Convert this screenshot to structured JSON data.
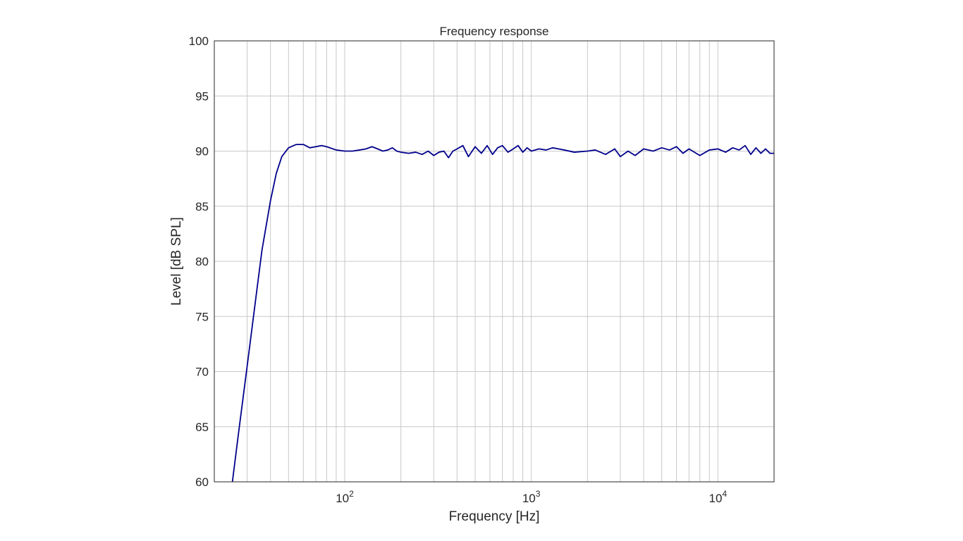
{
  "chart_data": {
    "type": "line",
    "title": "Frequency response",
    "xlabel": "Frequency [Hz]",
    "ylabel": "Level [dB SPL]",
    "x_scale": "log",
    "xlim": [
      20,
      20000
    ],
    "ylim": [
      60,
      100
    ],
    "x_ticks": [
      {
        "base": "10",
        "exp": "2"
      },
      {
        "base": "10",
        "exp": "3"
      },
      {
        "base": "10",
        "exp": "4"
      }
    ],
    "y_ticks": [
      "60",
      "65",
      "70",
      "75",
      "80",
      "85",
      "90",
      "95",
      "100"
    ],
    "grid": true,
    "line_color": "#00008b",
    "series": [
      {
        "x": [
          25,
          27,
          30,
          33,
          36,
          40,
          43,
          46,
          50,
          55,
          60,
          65,
          70,
          75,
          80,
          90,
          100,
          110,
          120,
          130,
          140,
          150,
          160,
          170,
          180,
          190,
          200,
          220,
          240,
          260,
          280,
          300,
          320,
          340,
          360,
          380,
          400,
          430,
          460,
          500,
          540,
          580,
          620,
          660,
          700,
          750,
          800,
          850,
          900,
          950,
          1000,
          1100,
          1200,
          1300,
          1400,
          1500,
          1700,
          2000,
          2200,
          2500,
          2800,
          3000,
          3300,
          3600,
          4000,
          4500,
          5000,
          5500,
          6000,
          6500,
          7000,
          8000,
          9000,
          10000,
          11000,
          12000,
          13000,
          14000,
          15000,
          16000,
          17000,
          18000,
          19000,
          20000
        ],
        "y": [
          60,
          64.5,
          70.5,
          76,
          81,
          85.5,
          88,
          89.5,
          90.3,
          90.6,
          90.6,
          90.3,
          90.4,
          90.5,
          90.4,
          90.1,
          90.0,
          90.0,
          90.1,
          90.2,
          90.4,
          90.2,
          90.0,
          90.1,
          90.3,
          90.0,
          89.9,
          89.8,
          89.9,
          89.7,
          90.0,
          89.6,
          89.9,
          90.0,
          89.4,
          90.0,
          90.2,
          90.5,
          89.5,
          90.4,
          89.8,
          90.5,
          89.7,
          90.3,
          90.5,
          89.9,
          90.2,
          90.5,
          89.9,
          90.3,
          90.0,
          90.2,
          90.1,
          90.3,
          90.2,
          90.1,
          89.9,
          90.0,
          90.1,
          89.7,
          90.2,
          89.5,
          90.0,
          89.6,
          90.2,
          90.0,
          90.3,
          90.1,
          90.4,
          89.8,
          90.2,
          89.6,
          90.1,
          90.2,
          89.9,
          90.3,
          90.1,
          90.5,
          89.7,
          90.3,
          89.8,
          90.2,
          89.8,
          89.8
        ]
      }
    ]
  }
}
